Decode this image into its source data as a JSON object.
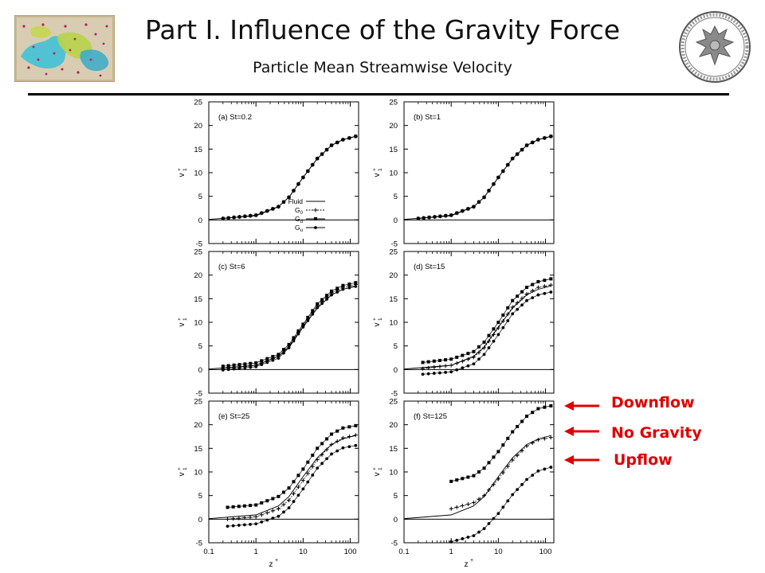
{
  "header": {
    "title": "Part I. Influence of the Gravity Force",
    "subtitle": "Particle Mean Streamwise Velocity"
  },
  "legend": [
    "Fluid",
    "G0",
    "Gd",
    "Gu"
  ],
  "annotations": [
    "Downflow",
    "No Gravity",
    "Upflow"
  ],
  "colors": {
    "annotation": "#e00000",
    "plot": "#000000"
  },
  "chart_data": [
    {
      "type": "line",
      "panel_label": "(a) St=0.2",
      "xlabel": "z+",
      "ylabel": "v1+",
      "xscale": "log",
      "xlim": [
        0.1,
        150
      ],
      "ylim": [
        -5,
        25
      ],
      "x_ticks": [
        "0.1",
        "1",
        "10",
        "100"
      ],
      "y_ticks": [
        "-5",
        "0",
        "5",
        "10",
        "15",
        "20",
        "25"
      ],
      "series": [
        {
          "name": "Fluid",
          "z": [
            0.1,
            1,
            3,
            5,
            10,
            20,
            40,
            70,
            130
          ],
          "v": [
            0.1,
            0.9,
            2.8,
            4.8,
            9.0,
            13.0,
            15.8,
            17.0,
            17.7
          ]
        },
        {
          "name": "G0",
          "z": [
            0.2,
            1,
            3,
            5,
            10,
            20,
            40,
            70,
            130
          ],
          "v": [
            0.3,
            1.0,
            2.8,
            4.8,
            9.0,
            13.0,
            15.8,
            17.0,
            17.7
          ]
        },
        {
          "name": "Gd",
          "z": [
            0.2,
            1,
            3,
            5,
            10,
            20,
            40,
            70,
            130
          ],
          "v": [
            0.3,
            1.0,
            2.8,
            4.8,
            9.0,
            13.0,
            15.8,
            17.0,
            17.7
          ]
        },
        {
          "name": "Gu",
          "z": [
            0.2,
            1,
            3,
            5,
            10,
            20,
            40,
            70,
            130
          ],
          "v": [
            0.3,
            1.0,
            2.8,
            4.8,
            9.0,
            13.0,
            15.8,
            17.0,
            17.7
          ]
        }
      ]
    },
    {
      "type": "line",
      "panel_label": "(b) St=1",
      "xlabel": "z+",
      "ylabel": "v1+",
      "xscale": "log",
      "xlim": [
        0.1,
        150
      ],
      "ylim": [
        -5,
        25
      ],
      "x_ticks": [
        "0.1",
        "1",
        "10",
        "100"
      ],
      "y_ticks": [
        "-5",
        "0",
        "5",
        "10",
        "15",
        "20",
        "25"
      ],
      "series": [
        {
          "name": "Fluid",
          "z": [
            0.1,
            1,
            3,
            5,
            10,
            20,
            40,
            70,
            130
          ],
          "v": [
            0.1,
            0.9,
            2.8,
            4.8,
            9.0,
            13.0,
            15.8,
            17.0,
            17.7
          ]
        },
        {
          "name": "G0",
          "z": [
            0.2,
            1,
            3,
            5,
            10,
            20,
            40,
            70,
            130
          ],
          "v": [
            0.3,
            1.0,
            2.8,
            4.8,
            9.0,
            13.0,
            15.8,
            17.0,
            17.7
          ]
        },
        {
          "name": "Gd",
          "z": [
            0.2,
            1,
            3,
            5,
            10,
            20,
            40,
            70,
            130
          ],
          "v": [
            0.3,
            1.0,
            2.8,
            4.8,
            9.0,
            13.0,
            15.8,
            17.0,
            17.7
          ]
        },
        {
          "name": "Gu",
          "z": [
            0.2,
            1,
            3,
            5,
            10,
            20,
            40,
            70,
            130
          ],
          "v": [
            0.3,
            1.0,
            2.8,
            4.8,
            9.0,
            13.0,
            15.8,
            17.0,
            17.7
          ]
        }
      ]
    },
    {
      "type": "line",
      "panel_label": "(c) St=6",
      "xlabel": "z+",
      "ylabel": "v1+",
      "xscale": "log",
      "xlim": [
        0.1,
        150
      ],
      "ylim": [
        -5,
        25
      ],
      "x_ticks": [
        "0.1",
        "1",
        "10",
        "100"
      ],
      "y_ticks": [
        "-5",
        "0",
        "5",
        "10",
        "15",
        "20",
        "25"
      ],
      "series": [
        {
          "name": "Fluid",
          "z": [
            0.1,
            1,
            3,
            5,
            10,
            20,
            40,
            70,
            130
          ],
          "v": [
            0.1,
            0.9,
            2.8,
            4.8,
            9.0,
            13.0,
            15.8,
            17.0,
            17.7
          ]
        },
        {
          "name": "G0",
          "z": [
            0.2,
            1,
            3,
            5,
            10,
            20,
            40,
            70,
            130
          ],
          "v": [
            0.2,
            0.9,
            2.8,
            5.0,
            9.3,
            13.5,
            16.2,
            17.4,
            18.0
          ]
        },
        {
          "name": "Gd",
          "z": [
            0.2,
            1,
            3,
            5,
            10,
            20,
            40,
            70,
            130
          ],
          "v": [
            0.7,
            1.4,
            3.2,
            5.3,
            9.6,
            13.9,
            16.6,
            17.8,
            18.4
          ]
        },
        {
          "name": "Gu",
          "z": [
            0.2,
            1,
            3,
            5,
            10,
            20,
            40,
            70,
            130
          ],
          "v": [
            -0.1,
            0.6,
            2.4,
            4.6,
            9.0,
            13.1,
            15.8,
            17.0,
            17.6
          ]
        }
      ]
    },
    {
      "type": "line",
      "panel_label": "(d) St=15",
      "xlabel": "z+",
      "ylabel": "v1+",
      "xscale": "log",
      "xlim": [
        0.1,
        150
      ],
      "ylim": [
        -5,
        25
      ],
      "x_ticks": [
        "0.1",
        "1",
        "10",
        "100"
      ],
      "y_ticks": [
        "-5",
        "0",
        "5",
        "10",
        "15",
        "20",
        "25"
      ],
      "series": [
        {
          "name": "Fluid",
          "z": [
            0.1,
            1,
            3,
            5,
            10,
            20,
            40,
            70,
            130
          ],
          "v": [
            0.1,
            0.9,
            2.8,
            4.8,
            9.0,
            13.0,
            15.8,
            17.0,
            17.7
          ]
        },
        {
          "name": "G0",
          "z": [
            0.25,
            1,
            3,
            5,
            10,
            20,
            40,
            70,
            130
          ],
          "v": [
            0.2,
            0.9,
            2.6,
            4.6,
            8.8,
            13.2,
            16.0,
            17.4,
            17.9
          ]
        },
        {
          "name": "Gd",
          "z": [
            0.25,
            1,
            3,
            5,
            10,
            20,
            40,
            70,
            130
          ],
          "v": [
            1.5,
            2.2,
            3.8,
            5.8,
            10.0,
            14.6,
            17.4,
            18.6,
            19.2
          ]
        },
        {
          "name": "Gu",
          "z": [
            0.25,
            1,
            3,
            5,
            10,
            20,
            40,
            70,
            130
          ],
          "v": [
            -1.0,
            -0.5,
            1.2,
            3.2,
            7.4,
            11.8,
            14.6,
            15.8,
            16.4
          ]
        }
      ]
    },
    {
      "type": "line",
      "panel_label": "(e) St=25",
      "xlabel": "z+",
      "ylabel": "v1+",
      "xscale": "log",
      "xlim": [
        0.1,
        150
      ],
      "ylim": [
        -5,
        25
      ],
      "x_ticks": [
        "0.1",
        "1",
        "10",
        "100"
      ],
      "y_ticks": [
        "-5",
        "0",
        "5",
        "10",
        "15",
        "20",
        "25"
      ],
      "series": [
        {
          "name": "Fluid",
          "z": [
            0.1,
            1,
            3,
            5,
            10,
            20,
            40,
            70,
            130
          ],
          "v": [
            0.1,
            0.9,
            2.8,
            4.8,
            9.0,
            13.0,
            15.8,
            17.0,
            17.7
          ]
        },
        {
          "name": "G0",
          "z": [
            0.25,
            1,
            3,
            5,
            10,
            20,
            40,
            70,
            130
          ],
          "v": [
            0.0,
            0.5,
            2.2,
            4.0,
            8.2,
            12.6,
            15.8,
            17.2,
            17.8
          ]
        },
        {
          "name": "Gd",
          "z": [
            0.25,
            1,
            3,
            5,
            10,
            20,
            40,
            70,
            130
          ],
          "v": [
            2.5,
            3.0,
            4.8,
            6.6,
            10.6,
            15.0,
            18.0,
            19.3,
            19.8
          ]
        },
        {
          "name": "Gu",
          "z": [
            0.25,
            1,
            3,
            5,
            10,
            20,
            40,
            70,
            130
          ],
          "v": [
            -1.5,
            -1.0,
            0.6,
            2.4,
            6.4,
            10.8,
            13.8,
            15.1,
            15.6
          ]
        }
      ]
    },
    {
      "type": "line",
      "panel_label": "(f) St=125",
      "xlabel": "z+",
      "ylabel": "v1+",
      "xscale": "log",
      "xlim": [
        0.1,
        150
      ],
      "ylim": [
        -5,
        25
      ],
      "x_ticks": [
        "0.1",
        "1",
        "10",
        "100"
      ],
      "y_ticks": [
        "-5",
        "0",
        "5",
        "10",
        "15",
        "20",
        "25"
      ],
      "series": [
        {
          "name": "Fluid",
          "z": [
            0.1,
            1,
            3,
            5,
            10,
            20,
            40,
            70,
            130
          ],
          "v": [
            0.1,
            0.9,
            2.8,
            4.8,
            9.0,
            13.0,
            15.8,
            17.0,
            17.7
          ]
        },
        {
          "name": "G0",
          "z": [
            1,
            3,
            5,
            10,
            20,
            40,
            70,
            130
          ],
          "v": [
            2.2,
            3.5,
            5.0,
            8.5,
            12.5,
            15.5,
            16.8,
            17.3
          ]
        },
        {
          "name": "Gd",
          "z": [
            1,
            3,
            5,
            10,
            20,
            40,
            70,
            130
          ],
          "v": [
            8.0,
            9.2,
            10.8,
            14.3,
            18.5,
            21.8,
            23.4,
            24.0
          ]
        },
        {
          "name": "Gu",
          "z": [
            1,
            3,
            5,
            10,
            20,
            40,
            70,
            130
          ],
          "v": [
            -4.8,
            -3.5,
            -2.0,
            1.2,
            5.2,
            8.4,
            10.2,
            11.0
          ]
        }
      ]
    }
  ]
}
